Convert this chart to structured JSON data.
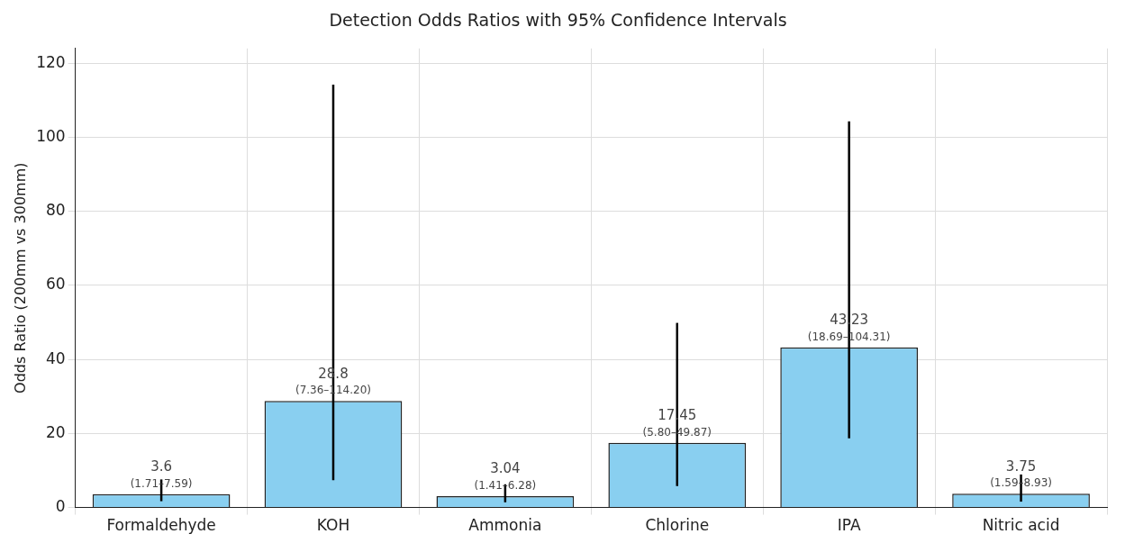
{
  "chart_data": {
    "type": "bar",
    "title": "Detection Odds Ratios with 95% Confidence Intervals",
    "ylabel": "Odds Ratio (200mm vs 300mm)",
    "categories": [
      "Formaldehyde",
      "KOH",
      "Ammonia",
      "Chlorine",
      "IPA",
      "Nitric acid"
    ],
    "values": [
      3.6,
      28.8,
      3.04,
      17.45,
      43.23,
      3.75
    ],
    "errors": [
      [
        1.71,
        7.59
      ],
      [
        7.36,
        114.2
      ],
      [
        1.41,
        6.28
      ],
      [
        5.8,
        49.87
      ],
      [
        18.69,
        104.31
      ],
      [
        1.59,
        8.93
      ]
    ],
    "value_labels": [
      "3.6",
      "28.8",
      "3.04",
      "17.45",
      "43.23",
      "3.75"
    ],
    "annotations": [
      {
        "text": "(1.71–7.59)",
        "x": "Formaldehyde",
        "y": 3.6
      },
      {
        "text": "(7.36–114.20)",
        "x": "KOH",
        "y": 28.8
      },
      {
        "text": "(1.41–6.28)",
        "x": "Ammonia",
        "y": 3.04
      },
      {
        "text": "(5.80–49.87)",
        "x": "Chlorine",
        "y": 17.45
      },
      {
        "text": "(18.69–104.31)",
        "x": "IPA",
        "y": 43.23
      },
      {
        "text": "(1.59–8.93)",
        "x": "Nitric acid",
        "y": 3.75
      }
    ],
    "color": "#89cff0",
    "ylim": [
      0,
      124
    ],
    "yticks": [
      0,
      20,
      40,
      60,
      80,
      100,
      120
    ],
    "grid": true,
    "legend": false
  }
}
